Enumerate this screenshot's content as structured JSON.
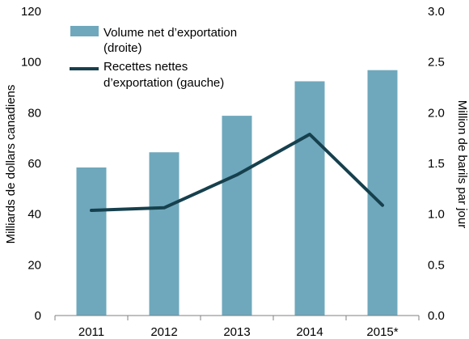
{
  "chart_data": {
    "type": "bar",
    "categories": [
      "2011",
      "2012",
      "2013",
      "2014",
      "2015*"
    ],
    "series": [
      {
        "name": "Volume net d’exportation (droite)",
        "kind": "bar",
        "axis": "right",
        "values": [
          1.46,
          1.61,
          1.97,
          2.31,
          2.42
        ]
      },
      {
        "name": "Recettes nettes d’exportation (gauche)",
        "kind": "line",
        "axis": "left",
        "values": [
          41.5,
          42.5,
          55.5,
          71.5,
          43.5
        ]
      }
    ],
    "y_left": {
      "label": "Milliards de dollars canadiens",
      "ylim": [
        0,
        120
      ],
      "ticks": [
        "0",
        "20",
        "40",
        "60",
        "80",
        "100",
        "120"
      ]
    },
    "y_right": {
      "label": "Million de barils par jour",
      "ylim": [
        0,
        3
      ],
      "ticks": [
        "0.0",
        "0.5",
        "1.0",
        "1.5",
        "2.0",
        "2.5",
        "3.0"
      ]
    },
    "legend": {
      "placement": "top-left",
      "bar_lines": [
        "Volume net d’exportation",
        "(droite)"
      ],
      "line_lines": [
        "Recettes nettes",
        "d’exportation (gauche)"
      ]
    },
    "grid": false,
    "colors": {
      "bar": "#6fa8bc",
      "line": "#16404d",
      "axis": "#808080"
    }
  }
}
